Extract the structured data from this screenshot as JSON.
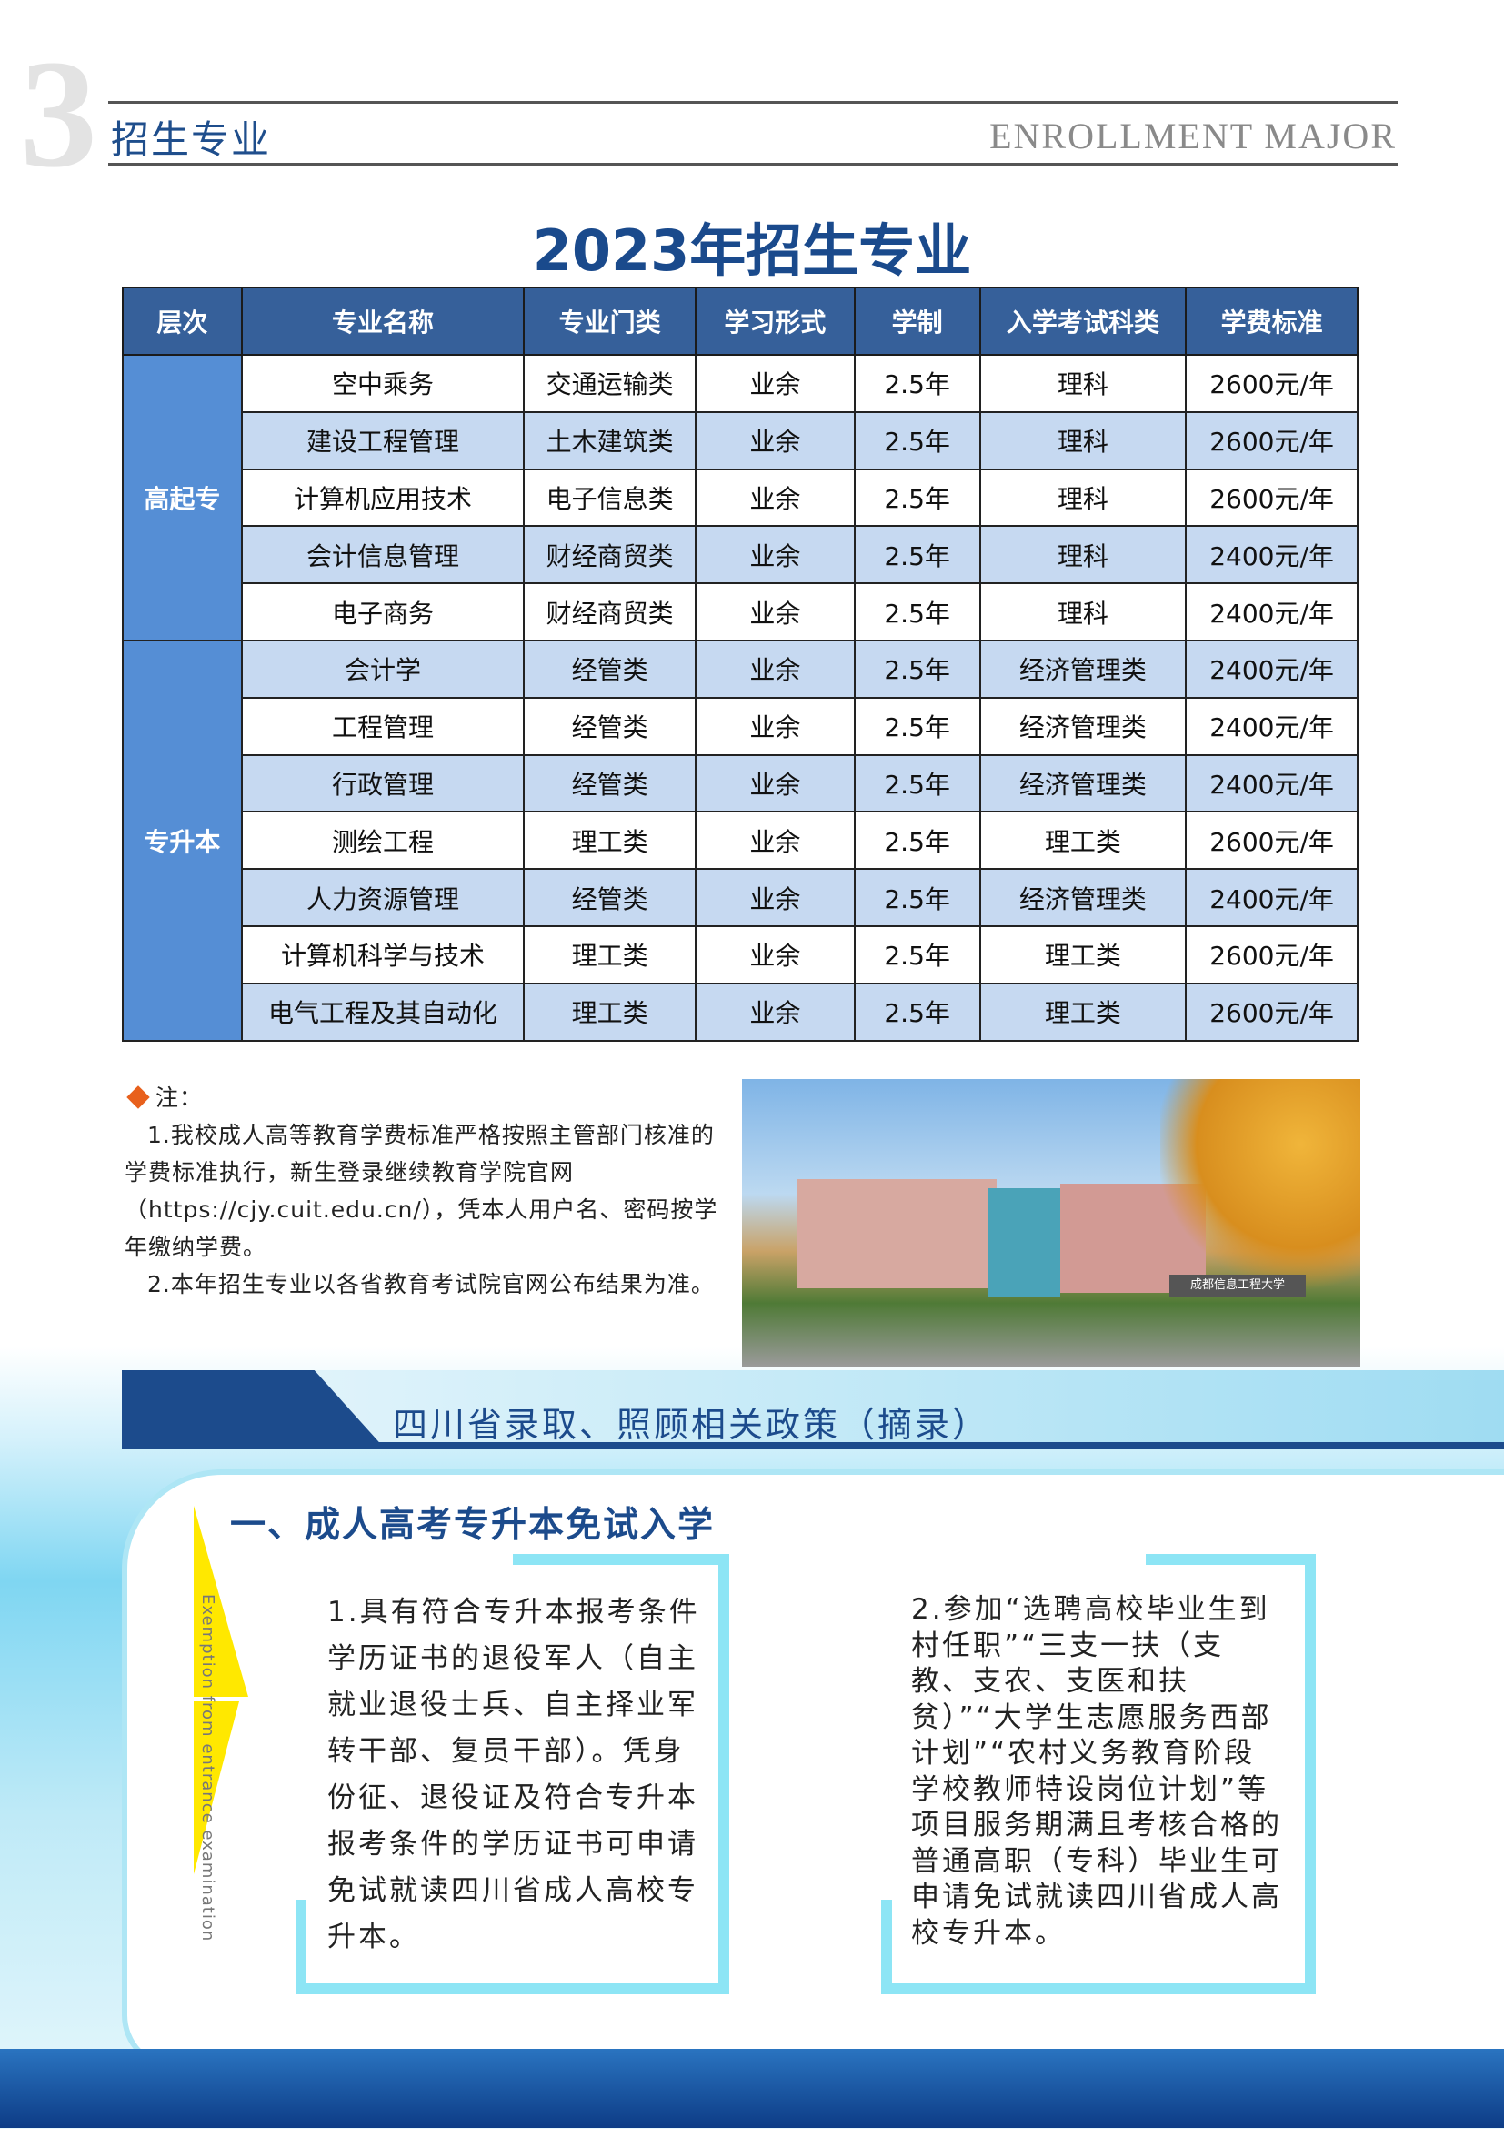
{
  "header": {
    "number": "3",
    "section_cn": "招生专业",
    "section_en": "ENROLLMENT MAJOR"
  },
  "title": "2023年招生专业",
  "table": {
    "columns": [
      "层次",
      "专业名称",
      "专业门类",
      "学习形式",
      "学制",
      "入学考试科类",
      "学费标准"
    ],
    "groups": [
      {
        "level": "高起专",
        "rows": [
          [
            "空中乘务",
            "交通运输类",
            "业余",
            "2.5年",
            "理科",
            "2600元/年"
          ],
          [
            "建设工程管理",
            "土木建筑类",
            "业余",
            "2.5年",
            "理科",
            "2600元/年"
          ],
          [
            "计算机应用技术",
            "电子信息类",
            "业余",
            "2.5年",
            "理科",
            "2600元/年"
          ],
          [
            "会计信息管理",
            "财经商贸类",
            "业余",
            "2.5年",
            "理科",
            "2400元/年"
          ],
          [
            "电子商务",
            "财经商贸类",
            "业余",
            "2.5年",
            "理科",
            "2400元/年"
          ]
        ]
      },
      {
        "level": "专升本",
        "rows": [
          [
            "会计学",
            "经管类",
            "业余",
            "2.5年",
            "经济管理类",
            "2400元/年"
          ],
          [
            "工程管理",
            "经管类",
            "业余",
            "2.5年",
            "经济管理类",
            "2400元/年"
          ],
          [
            "行政管理",
            "经管类",
            "业余",
            "2.5年",
            "经济管理类",
            "2400元/年"
          ],
          [
            "测绘工程",
            "理工类",
            "业余",
            "2.5年",
            "理工类",
            "2600元/年"
          ],
          [
            "人力资源管理",
            "经管类",
            "业余",
            "2.5年",
            "经济管理类",
            "2400元/年"
          ],
          [
            "计算机科学与技术",
            "理工类",
            "业余",
            "2.5年",
            "理工类",
            "2600元/年"
          ],
          [
            "电气工程及其自动化",
            "理工类",
            "业余",
            "2.5年",
            "理工类",
            "2600元/年"
          ]
        ]
      }
    ]
  },
  "notes": {
    "label": "注：",
    "items": [
      "1.我校成人高等教育学费标准严格按照主管部门核准的学费标准执行，新生登录继续教育学院官网（https://cjy.cuit.edu.cn/），凭本人用户名、密码按学年缴纳学费。",
      "2.本年招生专业以各省教育考试院官网公布结果为准。"
    ]
  },
  "photo": {
    "sign": "成都信息工程大学"
  },
  "policy": {
    "banner": "四川省录取、照顾相关政策（摘录）",
    "heading": "一、成人高考专升本免试入学",
    "side_en": "Exemption from entrance examination",
    "item1": "1.具有符合专升本报考条件学历证书的退役军人（自主就业退役士兵、自主择业军转干部、复员干部）。凭身份征、退役证及符合专升本报考条件的学历证书可申请免试就读四川省成人高校专升本。",
    "item2": "2.参加“选聘高校毕业生到村任职”“三支一扶（支教、支农、支医和扶贫）”“大学生志愿服务西部计划”“农村义务教育阶段学校教师特设岗位计划”等项目服务期满且考核合格的普通高职（专科）毕业生可申请免试就读四川省成人高校专升本。"
  },
  "colors": {
    "brand": "#1c4b8c",
    "header": "#36609a",
    "level": "#558ed5",
    "alt_row": "#c6d9f1",
    "accent": "#e8601c"
  }
}
